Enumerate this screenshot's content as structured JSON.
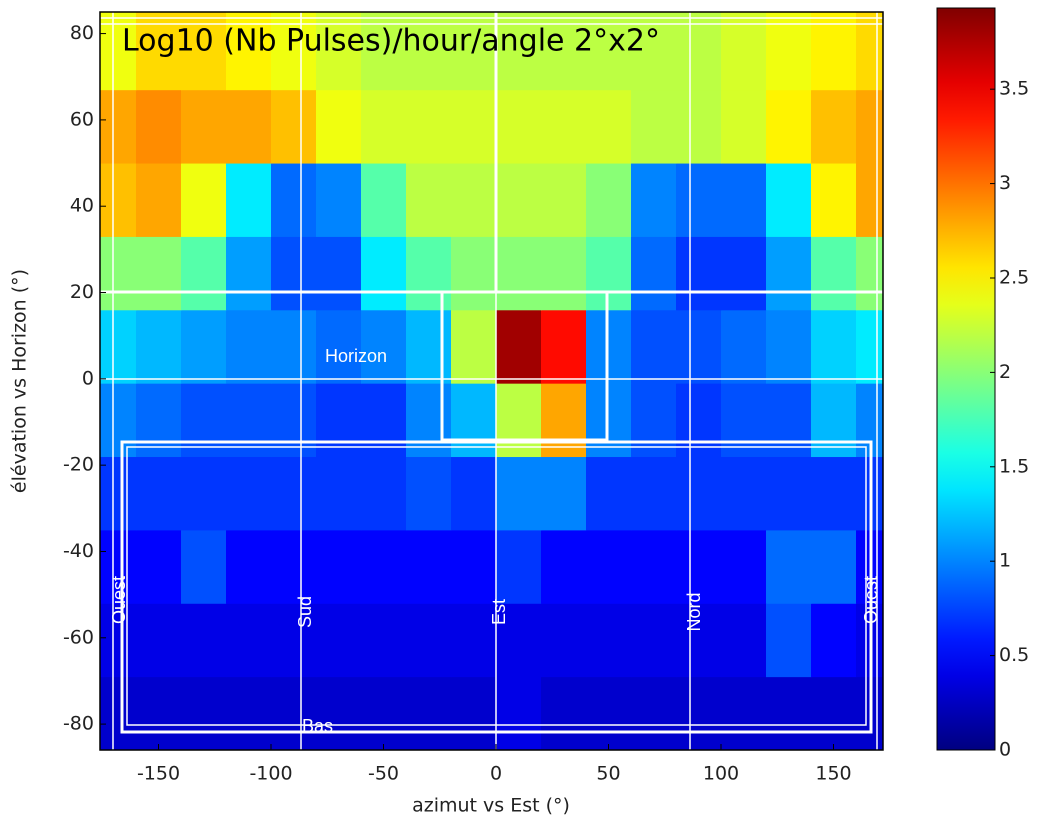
{
  "chart_data": {
    "type": "heatmap",
    "title": "Log10 (Nb Pulses)/hour/angle 2°x2°",
    "x_label": "azimut vs Est (°)",
    "y_label": "élévation vs Horizon (°)",
    "colormap": "jet",
    "xlim": [
      -176,
      172
    ],
    "ylim": [
      -86,
      85
    ],
    "xticks": [
      -150,
      -100,
      -50,
      0,
      50,
      100,
      150
    ],
    "yticks": [
      -80,
      -60,
      -40,
      -20,
      0,
      20,
      40,
      60,
      80
    ],
    "clim": [
      0,
      3.93
    ],
    "cticks": [
      0,
      0.5,
      1,
      1.5,
      2,
      2.5,
      3,
      3.5
    ],
    "xbins": [
      -180,
      -160,
      -140,
      -120,
      -100,
      -80,
      -60,
      -40,
      -20,
      0,
      20,
      40,
      60,
      80,
      100,
      120,
      140,
      160,
      180
    ],
    "ybins": [
      -86,
      -69,
      -52,
      -35,
      -18,
      -1,
      16,
      33,
      50,
      67,
      85
    ],
    "z": [
      [
        0.3,
        0.3,
        0.3,
        0.3,
        0.3,
        0.3,
        0.3,
        0.3,
        0.3,
        0.4,
        0.3,
        0.3,
        0.3,
        0.3,
        0.3,
        0.3,
        0.3,
        0.3
      ],
      [
        0.4,
        0.4,
        0.4,
        0.4,
        0.4,
        0.4,
        0.4,
        0.4,
        0.4,
        0.4,
        0.4,
        0.4,
        0.4,
        0.4,
        0.4,
        0.8,
        0.5,
        0.4
      ],
      [
        0.5,
        0.5,
        0.8,
        0.5,
        0.5,
        0.5,
        0.5,
        0.5,
        0.5,
        0.7,
        0.5,
        0.5,
        0.5,
        0.5,
        0.5,
        0.9,
        0.9,
        0.5
      ],
      [
        0.7,
        0.7,
        0.7,
        0.7,
        0.7,
        0.7,
        0.7,
        0.8,
        0.7,
        1.0,
        1.0,
        0.7,
        0.7,
        0.7,
        0.7,
        0.7,
        0.7,
        0.7
      ],
      [
        1.0,
        0.9,
        0.8,
        0.8,
        0.8,
        0.7,
        0.7,
        1.0,
        1.2,
        2.2,
        2.8,
        1.0,
        0.8,
        0.7,
        0.8,
        0.8,
        1.2,
        1.0
      ],
      [
        1.3,
        1.2,
        1.1,
        1.0,
        1.0,
        0.9,
        1.0,
        1.2,
        2.2,
        3.8,
        3.4,
        1.0,
        0.8,
        0.8,
        0.9,
        1.0,
        1.3,
        1.4
      ],
      [
        2.0,
        2.0,
        1.8,
        1.1,
        0.8,
        0.8,
        1.4,
        1.8,
        2.0,
        2.0,
        2.0,
        1.8,
        0.9,
        0.7,
        0.7,
        1.1,
        1.8,
        2.0
      ],
      [
        2.7,
        2.8,
        2.4,
        1.4,
        0.9,
        1.0,
        1.8,
        2.2,
        2.2,
        2.2,
        2.2,
        2.0,
        1.0,
        0.9,
        0.9,
        1.4,
        2.5,
        2.8
      ],
      [
        2.8,
        2.9,
        2.8,
        2.8,
        2.7,
        2.4,
        2.3,
        2.3,
        2.3,
        2.3,
        2.3,
        2.3,
        2.2,
        2.2,
        2.3,
        2.5,
        2.7,
        2.8
      ],
      [
        2.4,
        2.6,
        2.6,
        2.5,
        2.4,
        2.3,
        2.2,
        2.2,
        2.2,
        2.2,
        2.2,
        2.2,
        2.2,
        2.2,
        2.3,
        2.4,
        2.5,
        2.6
      ]
    ],
    "annotations": [
      "Horizon",
      "Bas",
      "Ouest",
      "Sud",
      "Est",
      "Nord",
      "Ouest"
    ]
  }
}
